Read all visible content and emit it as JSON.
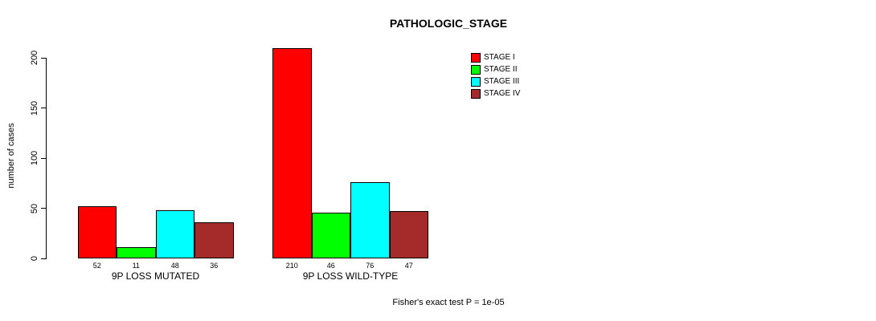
{
  "title": "PATHOLOGIC_STAGE",
  "caption": "Fisher's exact test P = 1e-05",
  "chart_data": {
    "type": "bar",
    "title": "PATHOLOGIC_STAGE",
    "xlabel": "",
    "ylabel": "number of cases",
    "ylim": [
      0,
      210
    ],
    "yticks": [
      "0",
      "50",
      "100",
      "150",
      "200"
    ],
    "grid": false,
    "legend_position": "top-right",
    "categories": [
      "9P LOSS MUTATED",
      "9P LOSS WILD-TYPE"
    ],
    "series": [
      {
        "name": "STAGE I",
        "color": "#ff0000",
        "values": [
          52,
          210
        ]
      },
      {
        "name": "STAGE II",
        "color": "#00ff00",
        "values": [
          11,
          46
        ]
      },
      {
        "name": "STAGE III",
        "color": "#00ffff",
        "values": [
          48,
          76
        ]
      },
      {
        "name": "STAGE IV",
        "color": "#a52a2a",
        "values": [
          36,
          47
        ]
      }
    ],
    "bar_value_labels": [
      [
        52,
        11,
        48,
        36
      ],
      [
        210,
        46,
        76,
        47
      ]
    ],
    "caption": "Fisher's exact test P = 1e-05"
  }
}
